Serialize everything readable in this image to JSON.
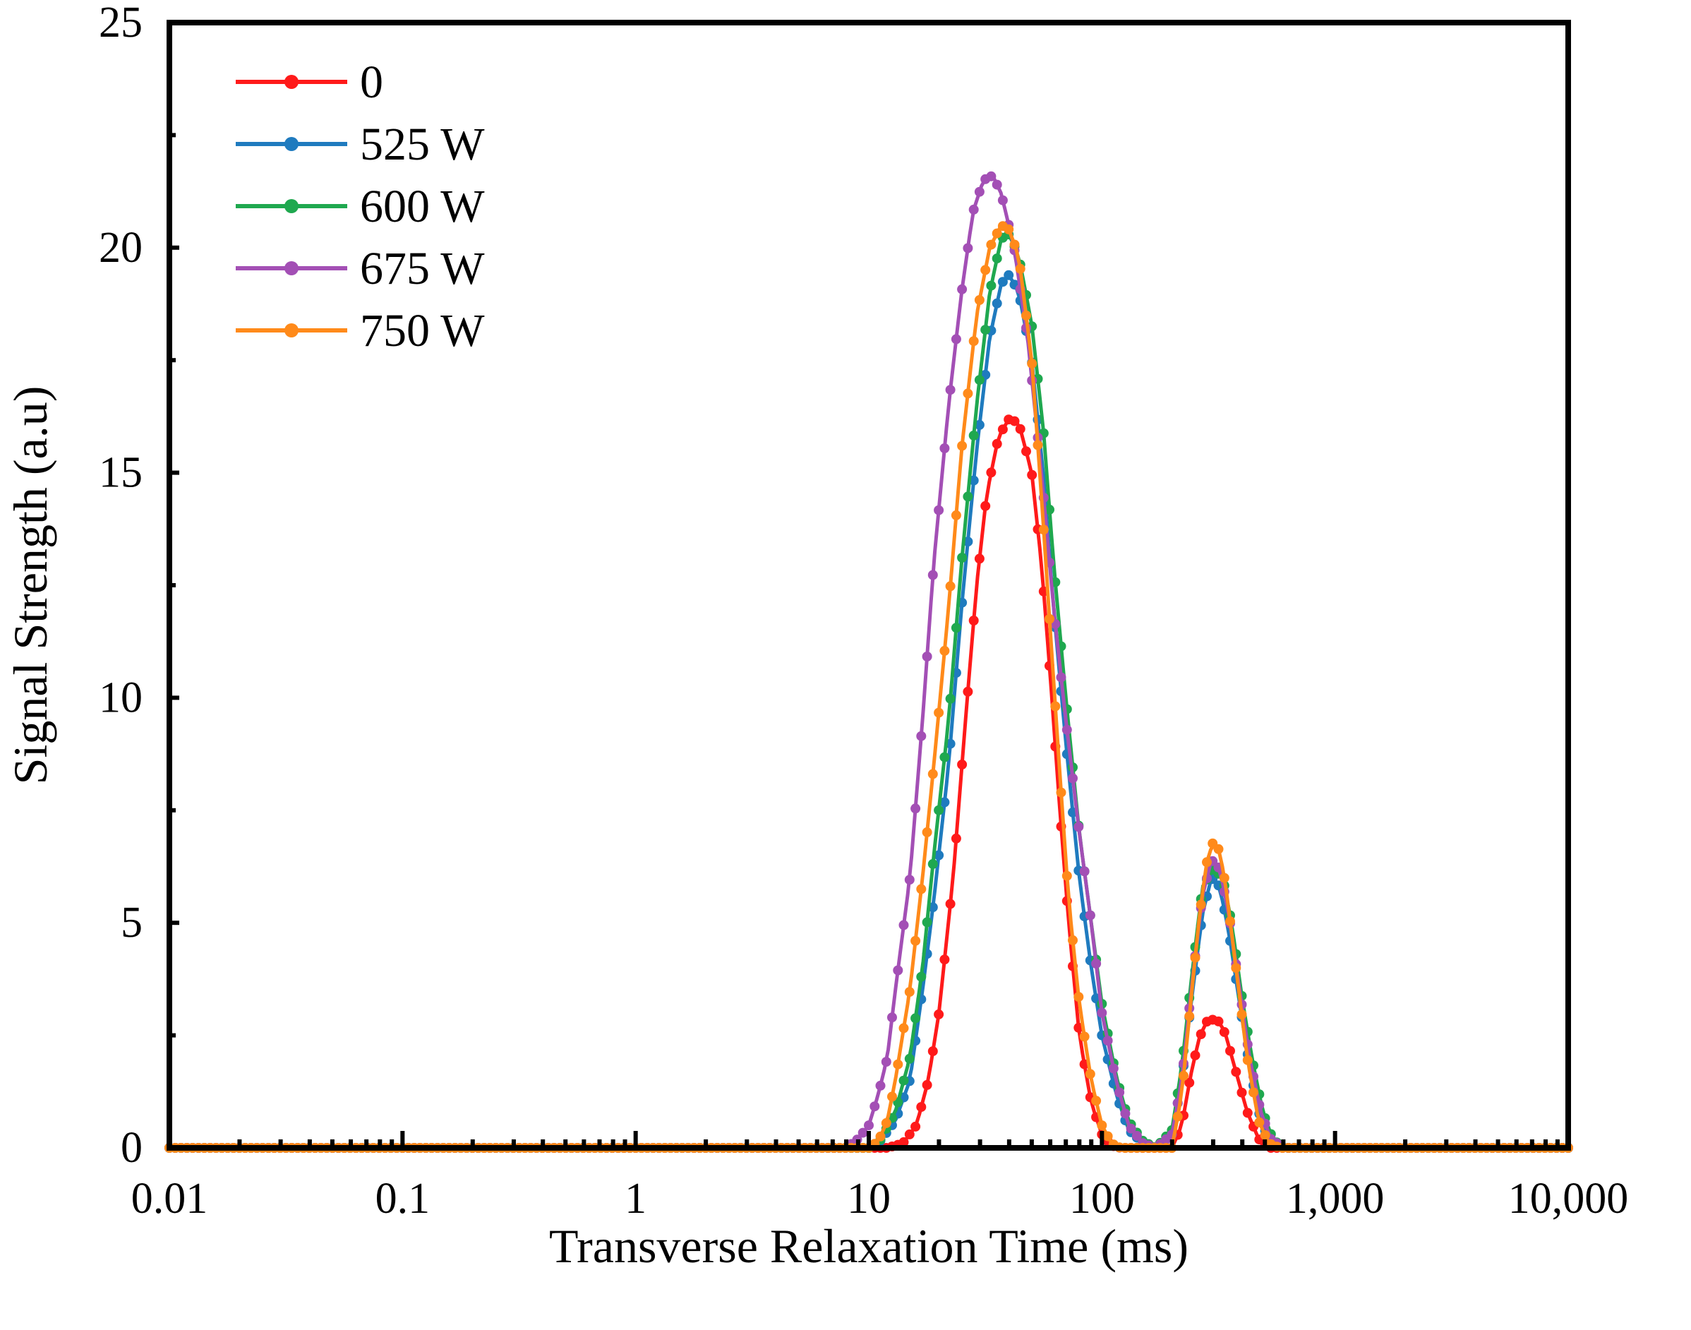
{
  "chart_data": {
    "type": "line",
    "xscale": "log",
    "xlabel": "Transverse Relaxation Time (ms)",
    "ylabel": "Signal Strength (a.u)",
    "xlim": [
      0.01,
      10000
    ],
    "ylim": [
      0,
      25
    ],
    "xticks": [
      {
        "value": 0.01,
        "label": "0.01"
      },
      {
        "value": 0.1,
        "label": "0.1"
      },
      {
        "value": 1,
        "label": "1"
      },
      {
        "value": 10,
        "label": "10"
      },
      {
        "value": 100,
        "label": "100"
      },
      {
        "value": 1000,
        "label": "1,000"
      },
      {
        "value": 10000,
        "label": "10,000"
      }
    ],
    "yticks": [
      {
        "value": 0,
        "label": "0"
      },
      {
        "value": 5,
        "label": "5"
      },
      {
        "value": 10,
        "label": "10"
      },
      {
        "value": 15,
        "label": "15"
      },
      {
        "value": 20,
        "label": "20"
      },
      {
        "value": 25,
        "label": "25"
      }
    ],
    "legend_position": "top-left",
    "series": [
      {
        "name": "0",
        "color": "#ff1a1a",
        "points": [
          [
            0.01,
            0
          ],
          [
            1,
            0
          ],
          [
            12,
            0
          ],
          [
            14,
            0.1
          ],
          [
            16,
            0.5
          ],
          [
            18,
            1.5
          ],
          [
            20,
            3
          ],
          [
            23,
            6
          ],
          [
            26,
            9.5
          ],
          [
            29,
            12.5
          ],
          [
            32,
            14.5
          ],
          [
            36,
            15.8
          ],
          [
            40,
            16.2
          ],
          [
            44,
            16.1
          ],
          [
            50,
            15
          ],
          [
            55,
            13
          ],
          [
            60,
            10.5
          ],
          [
            66,
            7.5
          ],
          [
            72,
            5
          ],
          [
            80,
            2.5
          ],
          [
            90,
            1
          ],
          [
            100,
            0.3
          ],
          [
            110,
            0.05
          ],
          [
            120,
            0
          ],
          [
            200,
            0
          ],
          [
            220,
            0.5
          ],
          [
            240,
            1.6
          ],
          [
            260,
            2.4
          ],
          [
            280,
            2.8
          ],
          [
            300,
            2.85
          ],
          [
            320,
            2.8
          ],
          [
            340,
            2.5
          ],
          [
            380,
            1.6
          ],
          [
            420,
            0.8
          ],
          [
            470,
            0.2
          ],
          [
            520,
            0
          ],
          [
            10000,
            0
          ]
        ]
      },
      {
        "name": "525 W",
        "color": "#1f7bbf",
        "points": [
          [
            0.01,
            0
          ],
          [
            1,
            0
          ],
          [
            10,
            0
          ],
          [
            11,
            0.1
          ],
          [
            13,
            0.6
          ],
          [
            15,
            1.5
          ],
          [
            17,
            3.5
          ],
          [
            19,
            5.5
          ],
          [
            22,
            8.5
          ],
          [
            25,
            12
          ],
          [
            29,
            15.5
          ],
          [
            33,
            18
          ],
          [
            37,
            19.2
          ],
          [
            40,
            19.4
          ],
          [
            44,
            19
          ],
          [
            50,
            17.5
          ],
          [
            56,
            15
          ],
          [
            62,
            12
          ],
          [
            70,
            9
          ],
          [
            80,
            6
          ],
          [
            90,
            4
          ],
          [
            100,
            2.5
          ],
          [
            115,
            1.2
          ],
          [
            130,
            0.4
          ],
          [
            150,
            0.1
          ],
          [
            170,
            0
          ],
          [
            200,
            0.3
          ],
          [
            220,
            1.5
          ],
          [
            245,
            3.5
          ],
          [
            270,
            5.2
          ],
          [
            295,
            6
          ],
          [
            320,
            5.8
          ],
          [
            350,
            4.8
          ],
          [
            390,
            3.2
          ],
          [
            430,
            1.8
          ],
          [
            480,
            0.6
          ],
          [
            530,
            0.1
          ],
          [
            600,
            0
          ],
          [
            10000,
            0
          ]
        ]
      },
      {
        "name": "600 W",
        "color": "#1fa84f",
        "points": [
          [
            0.01,
            0
          ],
          [
            1,
            0
          ],
          [
            10,
            0
          ],
          [
            11,
            0.1
          ],
          [
            13,
            0.8
          ],
          [
            15,
            2
          ],
          [
            17,
            4
          ],
          [
            19,
            6.5
          ],
          [
            22,
            9.5
          ],
          [
            25,
            13
          ],
          [
            29,
            16.5
          ],
          [
            33,
            19
          ],
          [
            37,
            20.2
          ],
          [
            40,
            20.3
          ],
          [
            44,
            19.8
          ],
          [
            50,
            18.3
          ],
          [
            56,
            16
          ],
          [
            62,
            13
          ],
          [
            70,
            10
          ],
          [
            80,
            7
          ],
          [
            90,
            5
          ],
          [
            100,
            3.2
          ],
          [
            115,
            1.6
          ],
          [
            130,
            0.6
          ],
          [
            150,
            0.15
          ],
          [
            170,
            0
          ],
          [
            200,
            0.4
          ],
          [
            220,
            1.8
          ],
          [
            245,
            4
          ],
          [
            270,
            5.8
          ],
          [
            300,
            6.2
          ],
          [
            330,
            6
          ],
          [
            360,
            5
          ],
          [
            400,
            3.3
          ],
          [
            440,
            2
          ],
          [
            490,
            0.8
          ],
          [
            540,
            0.2
          ],
          [
            600,
            0
          ],
          [
            10000,
            0
          ]
        ]
      },
      {
        "name": "675 W",
        "color": "#a34fb5",
        "points": [
          [
            0.01,
            0
          ],
          [
            1,
            0
          ],
          [
            8,
            0
          ],
          [
            9,
            0.2
          ],
          [
            10,
            0.5
          ],
          [
            11,
            1.2
          ],
          [
            12,
            2
          ],
          [
            13,
            3.5
          ],
          [
            15,
            6
          ],
          [
            17,
            9.5
          ],
          [
            19,
            13
          ],
          [
            22,
            16.5
          ],
          [
            25,
            19
          ],
          [
            28,
            20.8
          ],
          [
            31,
            21.5
          ],
          [
            34,
            21.6
          ],
          [
            37,
            21.2
          ],
          [
            42,
            20
          ],
          [
            48,
            18
          ],
          [
            55,
            15
          ],
          [
            62,
            12
          ],
          [
            70,
            9.5
          ],
          [
            80,
            7
          ],
          [
            90,
            5
          ],
          [
            100,
            3
          ],
          [
            115,
            1.5
          ],
          [
            130,
            0.5
          ],
          [
            150,
            0.1
          ],
          [
            170,
            0
          ],
          [
            200,
            0.3
          ],
          [
            220,
            1.5
          ],
          [
            245,
            3.8
          ],
          [
            270,
            5.6
          ],
          [
            295,
            6.4
          ],
          [
            320,
            6.2
          ],
          [
            350,
            5.2
          ],
          [
            390,
            3.5
          ],
          [
            430,
            2
          ],
          [
            480,
            0.8
          ],
          [
            530,
            0.2
          ],
          [
            600,
            0
          ],
          [
            10000,
            0
          ]
        ]
      },
      {
        "name": "750 W",
        "color": "#ff8a1a",
        "points": [
          [
            0.01,
            0
          ],
          [
            1,
            0
          ],
          [
            10,
            0
          ],
          [
            11,
            0.15
          ],
          [
            12,
            0.6
          ],
          [
            13,
            1.5
          ],
          [
            15,
            3.5
          ],
          [
            17,
            6
          ],
          [
            19,
            8.5
          ],
          [
            22,
            12
          ],
          [
            25,
            15.5
          ],
          [
            29,
            18.5
          ],
          [
            33,
            20
          ],
          [
            37,
            20.5
          ],
          [
            40,
            20.4
          ],
          [
            44,
            19.8
          ],
          [
            50,
            17.5
          ],
          [
            55,
            14.5
          ],
          [
            60,
            11.5
          ],
          [
            66,
            8.3
          ],
          [
            72,
            5.5
          ],
          [
            80,
            3.2
          ],
          [
            90,
            1.5
          ],
          [
            100,
            0.5
          ],
          [
            110,
            0.1
          ],
          [
            120,
            0
          ],
          [
            200,
            0
          ],
          [
            220,
            1.2
          ],
          [
            240,
            3.2
          ],
          [
            260,
            5
          ],
          [
            280,
            6.3
          ],
          [
            300,
            6.8
          ],
          [
            320,
            6.6
          ],
          [
            340,
            5.8
          ],
          [
            380,
            3.8
          ],
          [
            420,
            2
          ],
          [
            470,
            0.6
          ],
          [
            520,
            0.1
          ],
          [
            580,
            0
          ],
          [
            10000,
            0
          ]
        ]
      }
    ]
  }
}
